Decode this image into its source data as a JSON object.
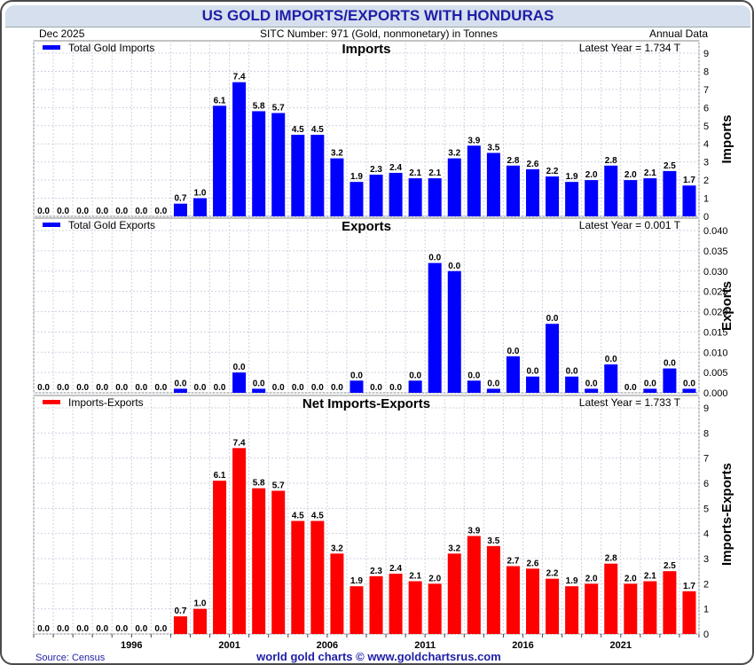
{
  "header": {
    "title": "US GOLD IMPORTS/EXPORTS WITH HONDURAS",
    "date": "Dec  2025",
    "sitc": "SITC Number: 971 (Gold, nonmonetary) in Tonnes",
    "frequency": "Annual Data"
  },
  "footer": {
    "source": "Source: Census",
    "credit": "world gold charts © www.goldchartsrus.com"
  },
  "colors": {
    "imports": "#0000ff",
    "exports": "#0000ff",
    "net": "#ff0000",
    "text": "#1e1ea8"
  },
  "chart_data": [
    {
      "type": "bar",
      "title": "Imports",
      "legend": "Total Gold Imports",
      "latest": "Latest Year = 1.734 T",
      "ylabel": "Imports",
      "ylim": [
        0,
        9
      ],
      "yticks": [
        "0",
        "1",
        "2",
        "3",
        "4",
        "5",
        "6",
        "7",
        "8",
        "9"
      ],
      "values": [
        0.0,
        0.0,
        0.0,
        0.0,
        0.0,
        0.0,
        0.0,
        0.7,
        1.0,
        6.1,
        7.4,
        5.8,
        5.7,
        4.5,
        4.5,
        3.2,
        1.9,
        2.3,
        2.4,
        2.1,
        2.1,
        3.2,
        3.9,
        3.5,
        2.8,
        2.6,
        2.2,
        1.9,
        2.0,
        2.8,
        2.0,
        2.1,
        2.5,
        1.7
      ],
      "labels": [
        "0.0",
        "0.0",
        "0.0",
        "0.0",
        "0.0",
        "0.0",
        "0.0",
        "0.7",
        "1.0",
        "6.1",
        "7.4",
        "5.8",
        "5.7",
        "4.5",
        "4.5",
        "3.2",
        "1.9",
        "2.3",
        "2.4",
        "2.1",
        "2.1",
        "3.2",
        "3.9",
        "3.5",
        "2.8",
        "2.6",
        "2.2",
        "1.9",
        "2.0",
        "2.8",
        "2.0",
        "2.1",
        "2.5",
        "1.7"
      ]
    },
    {
      "type": "bar",
      "title": "Exports",
      "legend": "Total Gold Exports",
      "latest": "Latest Year = 0.001 T",
      "ylabel": "Exports",
      "ylim": [
        0,
        0.04
      ],
      "yticks": [
        "0.000",
        "0.005",
        "0.010",
        "0.015",
        "0.020",
        "0.025",
        "0.030",
        "0.035",
        "0.040"
      ],
      "values": [
        0,
        0,
        0,
        0,
        0,
        0,
        0,
        0.001,
        0,
        0,
        0.005,
        0.001,
        0,
        0,
        0,
        0,
        0.003,
        0,
        0,
        0.003,
        0.032,
        0.03,
        0.003,
        0.001,
        0.009,
        0.004,
        0.017,
        0.004,
        0.001,
        0.007,
        0,
        0.001,
        0.006,
        0.001
      ],
      "labels": [
        "0.0",
        "0.0",
        "0.0",
        "0.0",
        "0.0",
        "0.0",
        "0.0",
        "0.0",
        "0.0",
        "0.0",
        "0.0",
        "0.0",
        "0.0",
        "0.0",
        "0.0",
        "0.0",
        "0.0",
        "0.0",
        "0.0",
        "0.0",
        "0.0",
        "0.0",
        "0.0",
        "0.0",
        "0.0",
        "0.0",
        "0.0",
        "0.0",
        "0.0",
        "0.0",
        "0.0",
        "0.0",
        "0.0",
        "0.0"
      ]
    },
    {
      "type": "bar",
      "title": "Net Imports-Exports",
      "legend": "Imports-Exports",
      "latest": "Latest Year = 1.733 T",
      "ylabel": "Imports-Exports",
      "ylim": [
        0,
        9
      ],
      "yticks": [
        "0",
        "1",
        "2",
        "3",
        "4",
        "5",
        "6",
        "7",
        "8",
        "9"
      ],
      "values": [
        0.0,
        0.0,
        0.0,
        0.0,
        0.0,
        0.0,
        0.0,
        0.7,
        1.0,
        6.1,
        7.4,
        5.8,
        5.7,
        4.5,
        4.5,
        3.2,
        1.9,
        2.3,
        2.4,
        2.1,
        2.0,
        3.2,
        3.9,
        3.5,
        2.7,
        2.6,
        2.2,
        1.9,
        2.0,
        2.8,
        2.0,
        2.1,
        2.5,
        1.7
      ],
      "labels": [
        "0.0",
        "0.0",
        "0.0",
        "0.0",
        "0.0",
        "0.0",
        "0.0",
        "0.7",
        "1.0",
        "6.1",
        "7.4",
        "5.8",
        "5.7",
        "4.5",
        "4.5",
        "3.2",
        "1.9",
        "2.3",
        "2.4",
        "2.1",
        "2.0",
        "3.2",
        "3.9",
        "3.5",
        "2.7",
        "2.6",
        "2.2",
        "1.9",
        "2.0",
        "2.8",
        "2.0",
        "2.1",
        "2.5",
        "1.7"
      ],
      "x_ticks": [
        "1996",
        "2001",
        "2006",
        "2011",
        "2016",
        "2021"
      ]
    }
  ]
}
